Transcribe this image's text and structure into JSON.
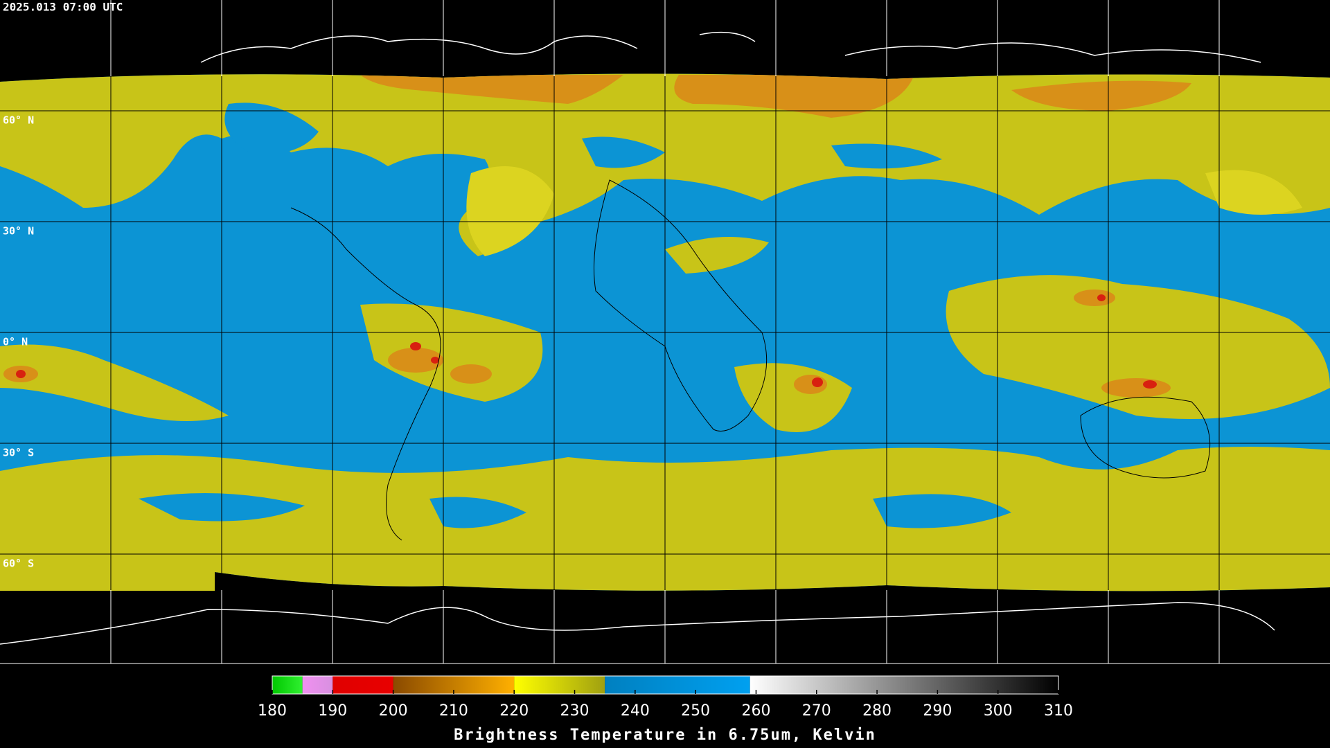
{
  "header": {
    "title": "2025.013 07:00 UTC"
  },
  "map": {
    "latlim": [
      90,
      -90
    ],
    "lat_ticks": [
      {
        "value": 60,
        "label": "60° N"
      },
      {
        "value": 30,
        "label": "30° N"
      },
      {
        "value": 0,
        "label": "0° N"
      },
      {
        "value": -30,
        "label": "30° S"
      },
      {
        "value": -60,
        "label": "60° S"
      }
    ]
  },
  "colorbar": {
    "lim": [
      180,
      310
    ],
    "ticks": [
      180,
      190,
      200,
      210,
      220,
      230,
      240,
      250,
      260,
      270,
      280,
      290,
      300,
      310
    ],
    "label": "Brightness Temperature in 6.75um, Kelvin",
    "segments": [
      {
        "from": 180,
        "to": 185,
        "colors": [
          "#00c800",
          "#30f030"
        ]
      },
      {
        "from": 185,
        "to": 190,
        "colors": [
          "#f090f0",
          "#d890e0"
        ]
      },
      {
        "from": 190,
        "to": 200,
        "colors": [
          "#e00000",
          "#e80000"
        ]
      },
      {
        "from": 200,
        "to": 220,
        "colors": [
          "#8a4a00",
          "#ffb000"
        ]
      },
      {
        "from": 220,
        "to": 235,
        "colors": [
          "#ffff00",
          "#a0a010"
        ]
      },
      {
        "from": 235,
        "to": 259,
        "colors": [
          "#0080c0",
          "#00a0f0"
        ]
      },
      {
        "from": 259,
        "to": 310,
        "colors": [
          "#ffffff",
          "#000000"
        ]
      }
    ]
  }
}
